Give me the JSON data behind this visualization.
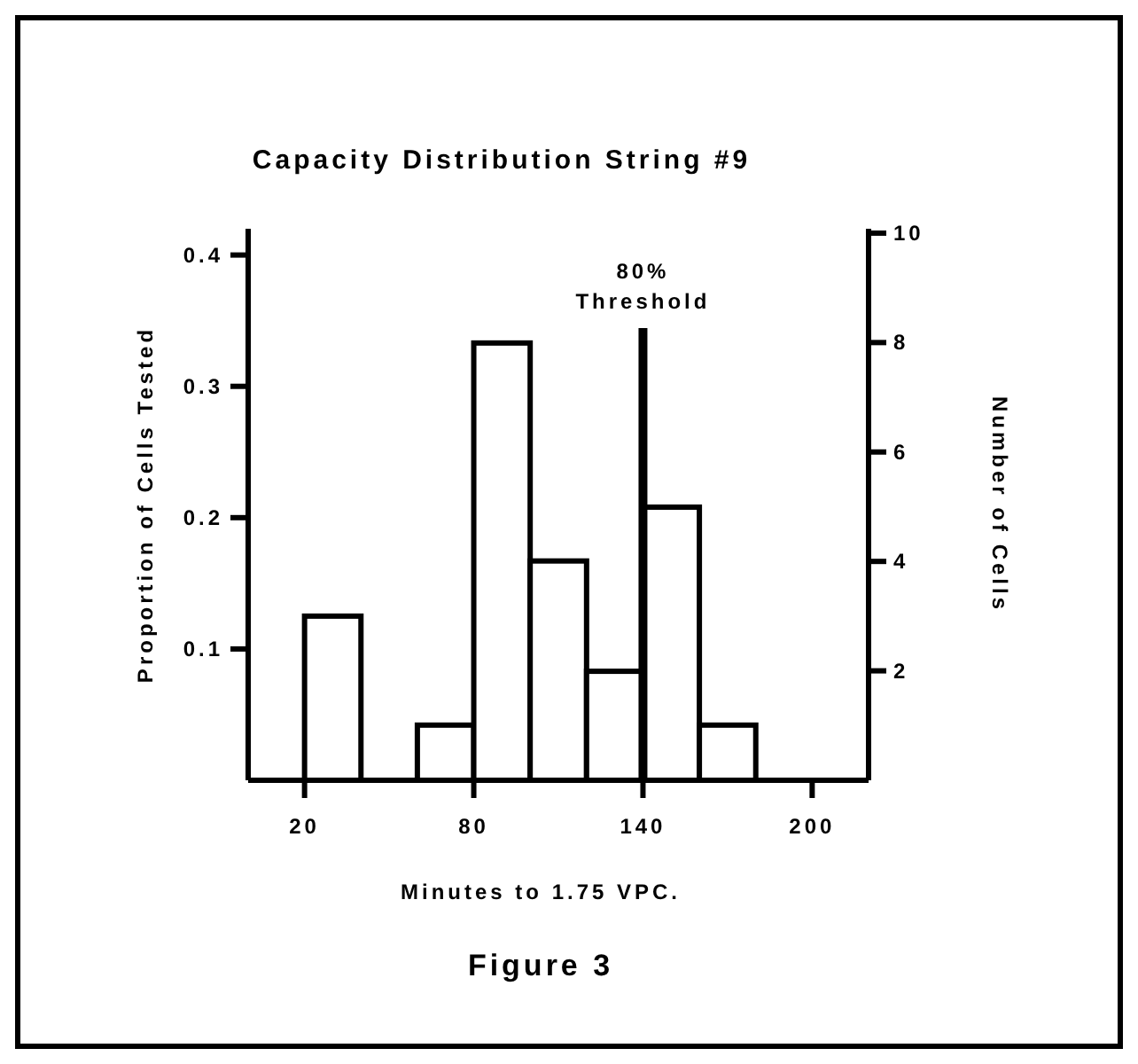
{
  "chart_data": {
    "type": "histogram",
    "title": "Capacity Distribution String #9",
    "xlabel": "Minutes to 1.75 VPC.",
    "ylabel": "Proportion of Cells Tested",
    "y2label": "Number of Cells",
    "bins": [
      20,
      40,
      60,
      80,
      100,
      120,
      140,
      160,
      180
    ],
    "values": [
      0.125,
      0,
      0.042,
      0.333,
      0.167,
      0.083,
      0.208,
      0.042
    ],
    "color": "#ffffff",
    "xlim": [
      0,
      220
    ],
    "xticks": [
      20,
      80,
      140,
      200
    ],
    "ylim": [
      0,
      0.42
    ],
    "yticks": [
      {
        "value": 0.1,
        "label": "0.1"
      },
      {
        "value": 0.2,
        "label": "0.2"
      },
      {
        "value": 0.3,
        "label": "0.3"
      },
      {
        "value": 0.4,
        "label": "0.4"
      }
    ],
    "y2lim": [
      0,
      10.08
    ],
    "y2ticks": [
      2,
      4,
      6,
      8,
      10
    ],
    "ref_lines": [
      {
        "axis": "x",
        "value": 140,
        "label": "80% Threshold",
        "color": "#000000"
      }
    ],
    "annotations": [
      "Figure 3"
    ],
    "grid": false
  }
}
